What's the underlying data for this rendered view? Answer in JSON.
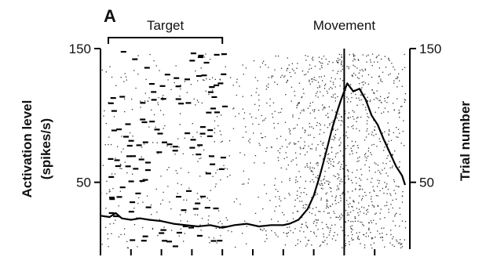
{
  "chart_data": {
    "type": "line",
    "panel_label": "A",
    "annotations": {
      "target_label": "Target",
      "movement_label": "Movement"
    },
    "left_axis": {
      "title_line1": "Activation level",
      "title_line2": "(spikes/s)",
      "ticks": [
        150,
        50
      ],
      "ylim": [
        0,
        150
      ]
    },
    "right_axis": {
      "title": "Trial number",
      "ticks": [
        150,
        50
      ],
      "ylim": [
        0,
        150
      ]
    },
    "x_ticks": [
      0,
      1,
      2,
      3,
      4,
      5,
      6,
      7,
      8,
      9
    ],
    "xlim": [
      0,
      10
    ],
    "target_interval": [
      0,
      4
    ],
    "movement_time": 8,
    "series": [
      {
        "x": [
          0,
          0.3,
          0.5,
          0.7,
          1.0,
          1.3,
          1.6,
          2.0,
          2.4,
          2.8,
          3.2,
          3.6,
          4.0,
          4.4,
          4.8,
          5.2,
          5.6,
          6.0,
          6.2,
          6.5,
          6.8,
          7.0,
          7.2,
          7.4,
          7.6,
          7.8,
          7.9,
          8.0,
          8.1,
          8.3,
          8.5,
          8.7,
          8.9,
          9.1,
          9.3,
          9.5,
          9.7,
          9.9,
          10.0
        ],
        "values": [
          25,
          24,
          27,
          23,
          22,
          23,
          22,
          21,
          19,
          18,
          17,
          18,
          16,
          18,
          19,
          17,
          18,
          18,
          19,
          22,
          30,
          40,
          55,
          72,
          90,
          105,
          112,
          118,
          124,
          118,
          120,
          112,
          100,
          93,
          82,
          72,
          62,
          55,
          48
        ]
      }
    ]
  }
}
